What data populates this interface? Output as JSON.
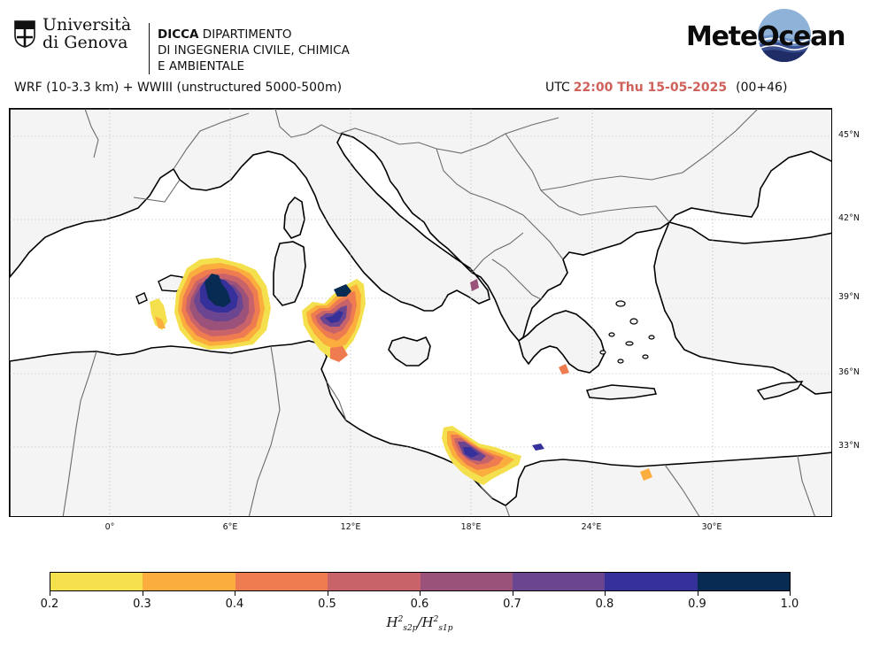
{
  "header": {
    "unige": {
      "line1": "Università",
      "line2": "di Genova"
    },
    "dicca": {
      "abbr": "DICCA",
      "line1_rest": "DIPARTIMENTO",
      "line2": "DI INGEGNERIA CIVILE, CHIMICA",
      "line3": "E AMBIENTALE"
    },
    "meteocean": "MeteOcean"
  },
  "model_title": "WRF (10-3.3 km) + WWIII (unstructured 5000-500m)",
  "time": {
    "utc": "UTC",
    "datetime": "22:00 Thu 15-05-2025",
    "lead": "(00+46)"
  },
  "map": {
    "lon_labels": [
      "0°",
      "6°E",
      "12°E",
      "18°E",
      "24°E",
      "30°E"
    ],
    "lat_labels": [
      "45°N",
      "42°N",
      "39°N",
      "36°N",
      "33°N"
    ],
    "colors": {
      "land": "#f4f4f4",
      "sea": "#ffffff",
      "coast": "#000000",
      "border": "#6b6b6b",
      "grid": "#bdbdbd"
    }
  },
  "colorbar": {
    "ticks": [
      "0.2",
      "0.3",
      "0.4",
      "0.5",
      "0.6",
      "0.7",
      "0.8",
      "0.9",
      "1.0"
    ],
    "colors": [
      "#f4e04d",
      "#fbad3e",
      "#ef7c50",
      "#c9636a",
      "#9a527a",
      "#6c4591",
      "#35309a",
      "#072b52"
    ],
    "label_main": "H",
    "label_sub1": "s2p",
    "label_sup": "2",
    "label_sub2": "s1p"
  }
}
